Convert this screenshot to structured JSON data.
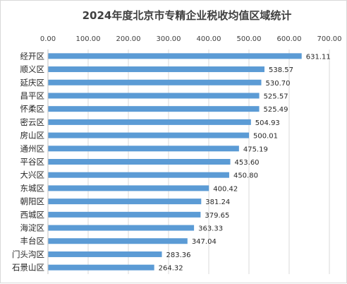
{
  "chart_data": {
    "type": "bar",
    "orientation": "horizontal",
    "title": "2024年度北京市专精企业税收均值区域统计",
    "categories": [
      "经开区",
      "顺义区",
      "延庆区",
      "昌平区",
      "怀柔区",
      "密云区",
      "房山区",
      "通州区",
      "平谷区",
      "大兴区",
      "东城区",
      "朝阳区",
      "西城区",
      "海淀区",
      "丰台区",
      "门头沟区",
      "石景山区"
    ],
    "values": [
      631.11,
      538.57,
      530.7,
      525.57,
      525.49,
      504.93,
      500.01,
      475.19,
      453.6,
      450.8,
      400.42,
      381.24,
      379.65,
      363.33,
      347.04,
      283.36,
      264.32
    ],
    "value_labels": [
      "631.11",
      "538.57",
      "530.70",
      "525.57",
      "525.49",
      "504.93",
      "500.01",
      "475.19",
      "453.60",
      "450.80",
      "400.42",
      "381.24",
      "379.65",
      "363.33",
      "347.04",
      "283.36",
      "264.32"
    ],
    "x_ticks": [
      "0.00",
      "100.00",
      "200.00",
      "300.00",
      "400.00",
      "500.00",
      "600.00",
      "700.00"
    ],
    "xlim": [
      0,
      700
    ],
    "axis_position": "top",
    "grid": true,
    "bar_color": "#5b9bd5"
  }
}
